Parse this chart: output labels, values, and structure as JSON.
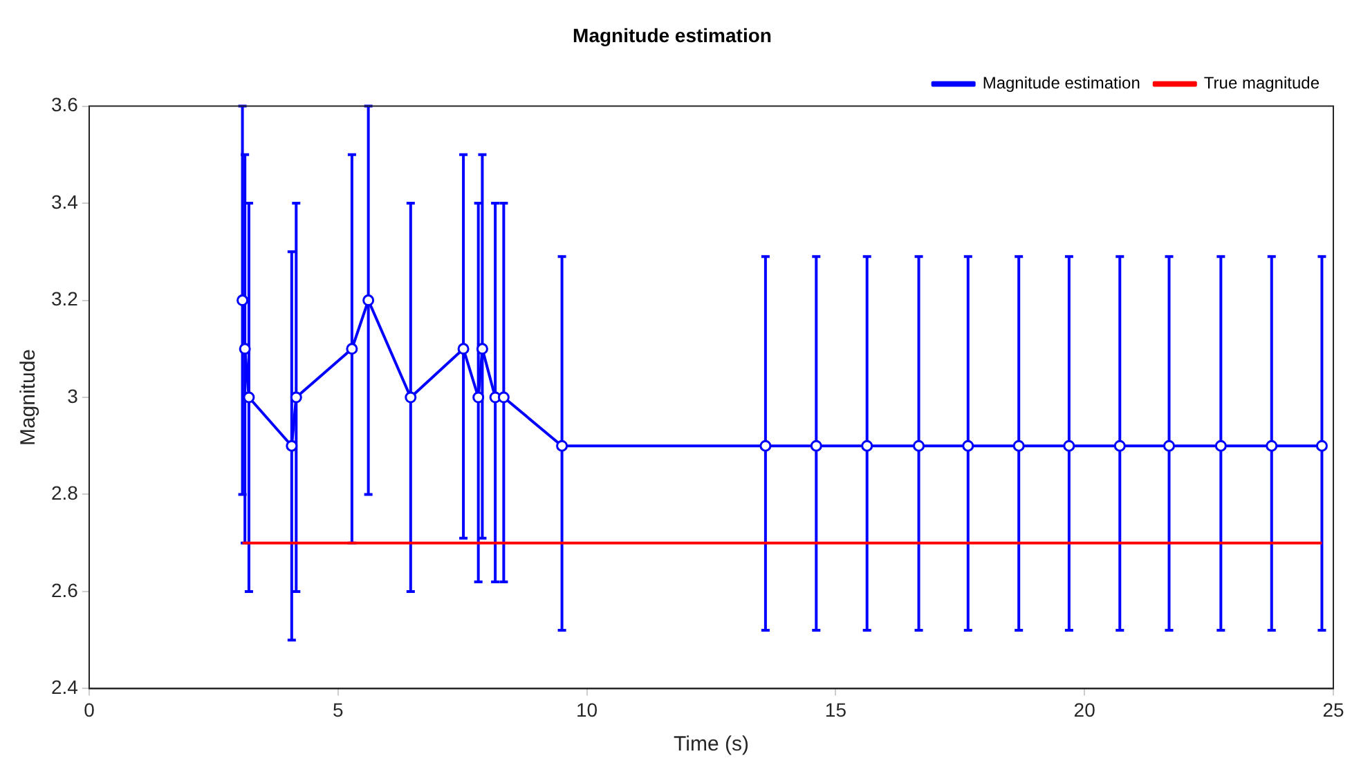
{
  "chart_data": {
    "type": "line",
    "title": "Magnitude estimation",
    "xlabel": "Time (s)",
    "ylabel": "Magnitude",
    "xlim": [
      0,
      25
    ],
    "xticks": [
      0,
      5,
      10,
      15,
      20,
      25
    ],
    "ylim": [
      2.4,
      3.6
    ],
    "yticks": [
      2.4,
      2.6,
      2.8,
      3,
      3.2,
      3.4,
      3.6
    ],
    "grid": false,
    "legend": "top right",
    "series": [
      {
        "name": "Magnitude estimation",
        "color": "#0000ff",
        "marker": "circle",
        "line_style": "solid",
        "x": [
          3.08,
          3.13,
          3.21,
          4.07,
          4.16,
          5.28,
          5.61,
          6.46,
          7.52,
          7.82,
          7.9,
          8.16,
          8.33,
          9.5,
          13.59,
          14.61,
          15.63,
          16.67,
          17.66,
          18.68,
          19.69,
          20.71,
          21.7,
          22.74,
          23.76,
          24.77
        ],
        "values": [
          3.2,
          3.1,
          3,
          2.9,
          3,
          3.1,
          3.2,
          3,
          3.1,
          3,
          3.1,
          3,
          3,
          2.9,
          2.9,
          2.9,
          2.9,
          2.9,
          2.9,
          2.9,
          2.9,
          2.9,
          2.9,
          2.9,
          2.9,
          2.9
        ],
        "errors": [
          [
            2.8,
            3.6
          ],
          [
            2.7,
            3.5
          ],
          [
            2.6,
            3.4
          ],
          [
            2.5,
            3.3
          ],
          [
            2.6,
            3.4
          ],
          [
            2.7,
            3.5
          ],
          [
            2.8,
            3.6
          ],
          [
            2.6,
            3.4
          ],
          [
            2.71,
            3.5
          ],
          [
            2.62,
            3.4
          ],
          [
            2.71,
            3.5
          ],
          [
            2.62,
            3.4
          ],
          [
            2.62,
            3.4
          ],
          [
            2.52,
            3.29
          ],
          [
            2.52,
            3.29
          ],
          [
            2.52,
            3.29
          ],
          [
            2.52,
            3.29
          ],
          [
            2.52,
            3.29
          ],
          [
            2.52,
            3.29
          ],
          [
            2.52,
            3.29
          ],
          [
            2.52,
            3.29
          ],
          [
            2.52,
            3.29
          ],
          [
            2.52,
            3.29
          ],
          [
            2.52,
            3.29
          ],
          [
            2.52,
            3.29
          ],
          [
            2.52,
            3.29
          ]
        ]
      },
      {
        "name": "True magnitude",
        "color": "#ff0000",
        "marker": "none",
        "line_style": "solid",
        "x": [
          3.08,
          24.77
        ],
        "values": [
          2.7,
          2.7
        ]
      }
    ]
  }
}
